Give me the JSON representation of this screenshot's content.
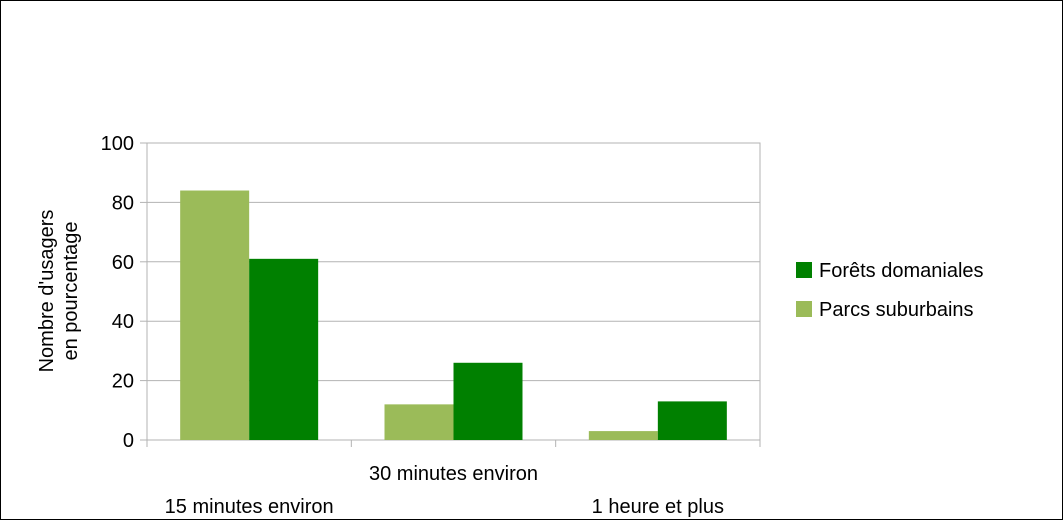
{
  "chart_data": {
    "type": "bar",
    "title": "",
    "xlabel": "",
    "ylabel_lines": [
      "Nombre d'usagers",
      "en pourcentage"
    ],
    "categories": [
      "15 minutes environ",
      "30 minutes environ",
      "1 heure et plus"
    ],
    "yticks": [
      "0",
      "20",
      "40",
      "60",
      "80",
      "100"
    ],
    "ylim": [
      0,
      100
    ],
    "grid": true,
    "legend_position": "right",
    "series": [
      {
        "name": "Parcs suburbains",
        "values": [
          84,
          12,
          3
        ],
        "color": "#9bbb59"
      },
      {
        "name": "Forêts domaniales",
        "values": [
          61,
          26,
          13
        ],
        "color": "#008000"
      }
    ],
    "legend": [
      {
        "label": "Forêts domaniales",
        "color": "#008000"
      },
      {
        "label": "Parcs suburbains",
        "color": "#9bbb59"
      }
    ]
  }
}
